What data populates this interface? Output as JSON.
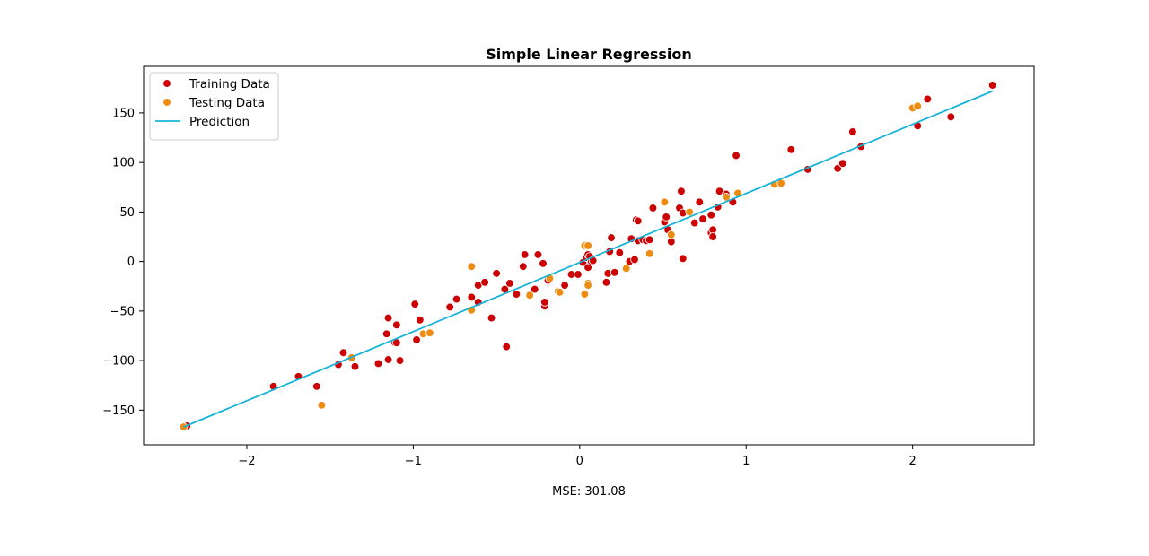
{
  "chart_data": {
    "type": "scatter",
    "title": "Simple Linear Regression",
    "xlabel": "",
    "ylabel": "",
    "xlim": [
      -2.62,
      2.73
    ],
    "ylim": [
      -185,
      197
    ],
    "xticks": [
      -2,
      -1,
      0,
      1,
      2
    ],
    "yticks": [
      -150,
      -100,
      -50,
      0,
      50,
      100,
      150
    ],
    "xtick_labels": [
      "−2",
      "−1",
      "0",
      "1",
      "2"
    ],
    "ytick_labels": [
      "−150",
      "−100",
      "−50",
      "0",
      "50",
      "100",
      "150"
    ],
    "grid": false,
    "legend_position": "top-left",
    "footer": "MSE: 301.08",
    "series": [
      {
        "name": "Training Data",
        "kind": "scatter",
        "color": "#cc0000",
        "points": [
          [
            -2.36,
            -166
          ],
          [
            -1.84,
            -126
          ],
          [
            -1.69,
            -116
          ],
          [
            -1.58,
            -126
          ],
          [
            -1.45,
            -104
          ],
          [
            -1.42,
            -92
          ],
          [
            -1.35,
            -106
          ],
          [
            -1.21,
            -103
          ],
          [
            -1.16,
            -73
          ],
          [
            -1.15,
            -57
          ],
          [
            -1.15,
            -99
          ],
          [
            -1.11,
            -82
          ],
          [
            -1.1,
            -64
          ],
          [
            -1.1,
            -82
          ],
          [
            -1.08,
            -100
          ],
          [
            -0.99,
            -43
          ],
          [
            -0.98,
            -79
          ],
          [
            -0.96,
            -59
          ],
          [
            -0.78,
            -46
          ],
          [
            -0.74,
            -38
          ],
          [
            -0.65,
            -36
          ],
          [
            -0.61,
            -41
          ],
          [
            -0.61,
            -24
          ],
          [
            -0.57,
            -21
          ],
          [
            -0.53,
            -57
          ],
          [
            -0.5,
            -12
          ],
          [
            -0.45,
            -28
          ],
          [
            -0.44,
            -86
          ],
          [
            -0.42,
            -22
          ],
          [
            -0.38,
            -33
          ],
          [
            -0.34,
            -5
          ],
          [
            -0.33,
            7
          ],
          [
            -0.27,
            -28
          ],
          [
            -0.25,
            7
          ],
          [
            -0.22,
            -2
          ],
          [
            -0.21,
            -45
          ],
          [
            -0.21,
            -41
          ],
          [
            -0.19,
            -19
          ],
          [
            -0.09,
            -24
          ],
          [
            -0.05,
            -13
          ],
          [
            -0.01,
            -13
          ],
          [
            0.02,
            -1
          ],
          [
            0.04,
            4
          ],
          [
            0.05,
            7
          ],
          [
            0.05,
            -6
          ],
          [
            0.06,
            5
          ],
          [
            0.07,
            0
          ],
          [
            0.08,
            1
          ],
          [
            0.16,
            -21
          ],
          [
            0.17,
            -12
          ],
          [
            0.18,
            10
          ],
          [
            0.19,
            24
          ],
          [
            0.21,
            -11
          ],
          [
            0.24,
            9
          ],
          [
            0.3,
            0
          ],
          [
            0.31,
            23
          ],
          [
            0.33,
            2
          ],
          [
            0.34,
            42
          ],
          [
            0.35,
            41
          ],
          [
            0.35,
            21
          ],
          [
            0.38,
            22
          ],
          [
            0.4,
            21
          ],
          [
            0.42,
            22
          ],
          [
            0.44,
            54
          ],
          [
            0.51,
            40
          ],
          [
            0.52,
            45
          ],
          [
            0.53,
            32
          ],
          [
            0.55,
            20
          ],
          [
            0.6,
            54
          ],
          [
            0.61,
            71
          ],
          [
            0.62,
            49
          ],
          [
            0.62,
            3
          ],
          [
            0.69,
            39
          ],
          [
            0.72,
            60
          ],
          [
            0.74,
            43
          ],
          [
            0.79,
            47
          ],
          [
            0.79,
            29
          ],
          [
            0.8,
            32
          ],
          [
            0.8,
            25
          ],
          [
            0.83,
            55
          ],
          [
            0.84,
            71
          ],
          [
            0.88,
            68
          ],
          [
            0.92,
            60
          ],
          [
            0.94,
            107
          ],
          [
            1.27,
            113
          ],
          [
            1.37,
            93
          ],
          [
            1.55,
            94
          ],
          [
            1.58,
            99
          ],
          [
            1.64,
            131
          ],
          [
            1.69,
            116
          ],
          [
            2.03,
            137
          ],
          [
            2.09,
            164
          ],
          [
            2.23,
            146
          ],
          [
            2.48,
            178
          ]
        ]
      },
      {
        "name": "Testing Data",
        "kind": "scatter",
        "color": "#ee8c12",
        "points": [
          [
            -2.38,
            -167
          ],
          [
            -1.55,
            -145
          ],
          [
            -1.37,
            -97
          ],
          [
            -0.94,
            -73
          ],
          [
            -0.9,
            -72
          ],
          [
            -0.65,
            -49
          ],
          [
            -0.65,
            -5
          ],
          [
            -0.3,
            -34
          ],
          [
            -0.18,
            -17
          ],
          [
            -0.13,
            -30
          ],
          [
            -0.12,
            -31
          ],
          [
            0.03,
            -33
          ],
          [
            0.03,
            16
          ],
          [
            0.05,
            16
          ],
          [
            0.05,
            -22
          ],
          [
            0.05,
            -24
          ],
          [
            0.28,
            -7
          ],
          [
            0.42,
            8
          ],
          [
            0.51,
            60
          ],
          [
            0.55,
            27
          ],
          [
            0.66,
            50
          ],
          [
            0.88,
            65
          ],
          [
            0.95,
            69
          ],
          [
            1.17,
            78
          ],
          [
            1.21,
            79
          ],
          [
            2.0,
            155
          ],
          [
            2.03,
            157
          ]
        ]
      },
      {
        "name": "Prediction",
        "kind": "line",
        "color": "#17b2d8",
        "points": [
          [
            -2.38,
            -167
          ],
          [
            2.48,
            172
          ]
        ]
      }
    ]
  }
}
